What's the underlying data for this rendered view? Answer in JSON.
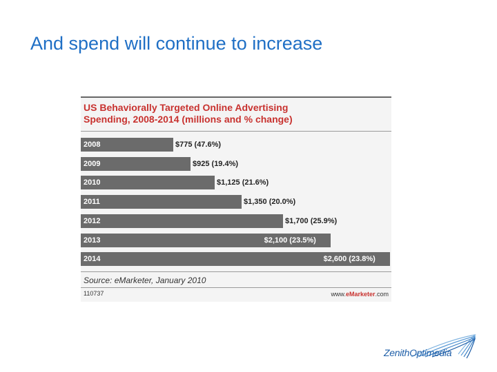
{
  "slide": {
    "title": "And spend will continue to increase"
  },
  "chart_data": {
    "type": "bar",
    "orientation": "horizontal",
    "title": "US Behaviorally Targeted Online Advertising",
    "subtitle": "Spending, 2008-2014 (millions and % change)",
    "categories": [
      "2008",
      "2009",
      "2010",
      "2011",
      "2012",
      "2013",
      "2014"
    ],
    "values": [
      775,
      925,
      1125,
      1350,
      1700,
      2100,
      2600
    ],
    "data_labels": [
      "$775 (47.6%)",
      "$925 (19.4%)",
      "$1,125 (21.6%)",
      "$1,350 (20.0%)",
      "$1,700 (25.9%)",
      "$2,100 (23.5%)",
      "$2,600 (23.8%)"
    ],
    "xlim": [
      0,
      2600
    ],
    "grid": false,
    "source": "Source: eMarketer, January 2010",
    "chart_id": "110737",
    "website": "www.eMarketer.com",
    "colors": {
      "bar": "#6b6b6b",
      "title": "#c8322f",
      "background": "#f4f4f4"
    }
  },
  "logo": {
    "text": "ZenithOptimedia",
    "color": "#1f5fa8"
  },
  "colors": {
    "slide_title": "#1f6fc5"
  }
}
